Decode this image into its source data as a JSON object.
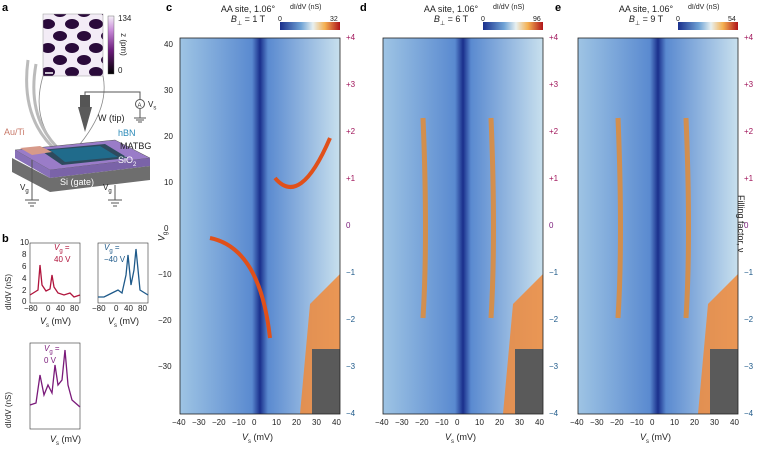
{
  "panel_letters": {
    "a": "a",
    "b": "b",
    "c": "c",
    "d": "d",
    "e": "e"
  },
  "schematic": {
    "colorbar_max": "134",
    "colorbar_min": "0",
    "colorbar_unit": "z (pm)",
    "tip_label": "W (tip)",
    "hbn_label": "hBN",
    "contact_label": "Au/Ti",
    "sample_label": "MATBG",
    "oxide_label": "SiO",
    "oxide_sub": "2",
    "gate_label": "Si (gate)",
    "bias_label": "V",
    "bias_sub": "s",
    "gate_v_label": "V",
    "gate_v_sub": "g"
  },
  "panel_b": {
    "ylabel": "dI/dV (nS)",
    "xlabel": "V",
    "xlabel_sub": "s",
    "xlabel_unit": "(mV)",
    "yticks": [
      "10",
      "8",
      "6",
      "4",
      "2",
      "0"
    ],
    "xticks": [
      "−80",
      "0",
      "40",
      "80"
    ],
    "insets": [
      {
        "label_v": "V",
        "label_sub": "g",
        "label_val": "=",
        "label_num": "40 V",
        "color": "#b0143c"
      },
      {
        "label_v": "V",
        "label_sub": "g",
        "label_val": "=",
        "label_num": "−40 V",
        "color": "#1f5a8a"
      },
      {
        "label_v": "V",
        "label_sub": "g",
        "label_val": "=",
        "label_num": "0 V",
        "color": "#7a1a7a"
      }
    ]
  },
  "maps": [
    {
      "title": "AA site, 1.06°",
      "field_label": "B",
      "field_sub": "⊥",
      "field_val": "= 1 T",
      "cb_min": "0",
      "cb_max": "32",
      "cb_unit": "dI/dV (nS)"
    },
    {
      "title": "AA site, 1.06°",
      "field_label": "B",
      "field_sub": "⊥",
      "field_val": "= 6 T",
      "cb_min": "0",
      "cb_max": "96",
      "cb_unit": "dI/dV (nS)"
    },
    {
      "title": "AA site, 1.06°",
      "field_label": "B",
      "field_sub": "⊥",
      "field_val": "= 9 T",
      "cb_min": "0",
      "cb_max": "54",
      "cb_unit": "dI/dV (nS)"
    }
  ],
  "axes": {
    "x_label": "V",
    "x_sub": "s",
    "x_unit": "(mV)",
    "y_label": "V",
    "y_sub": "g",
    "xticks": [
      "−40",
      "−30",
      "−20",
      "−10",
      "0",
      "10",
      "20",
      "30",
      "40"
    ],
    "yticks": [
      "40",
      "30",
      "20",
      "10",
      "0",
      "−10",
      "−20",
      "−30"
    ],
    "filling": [
      "+4",
      "+3",
      "+2",
      "+1",
      "0",
      "−1",
      "−2",
      "−3",
      "−4"
    ],
    "filling_colors": [
      "#a0145a",
      "#a0145a",
      "#a0145a",
      "#a0145a",
      "#7a1a7a",
      "#1f5a8a",
      "#1f5a8a",
      "#1f5a8a",
      "#1f5a8a"
    ],
    "filling_label": "Filling factor, ν"
  },
  "colors": {
    "map_dark": "#1a2f8c",
    "map_mid": "#6fa3d6",
    "map_light": "#d8e8f0",
    "hot": "#e0301a",
    "warm": "#f4b050",
    "sat": "#5a5a5a"
  }
}
